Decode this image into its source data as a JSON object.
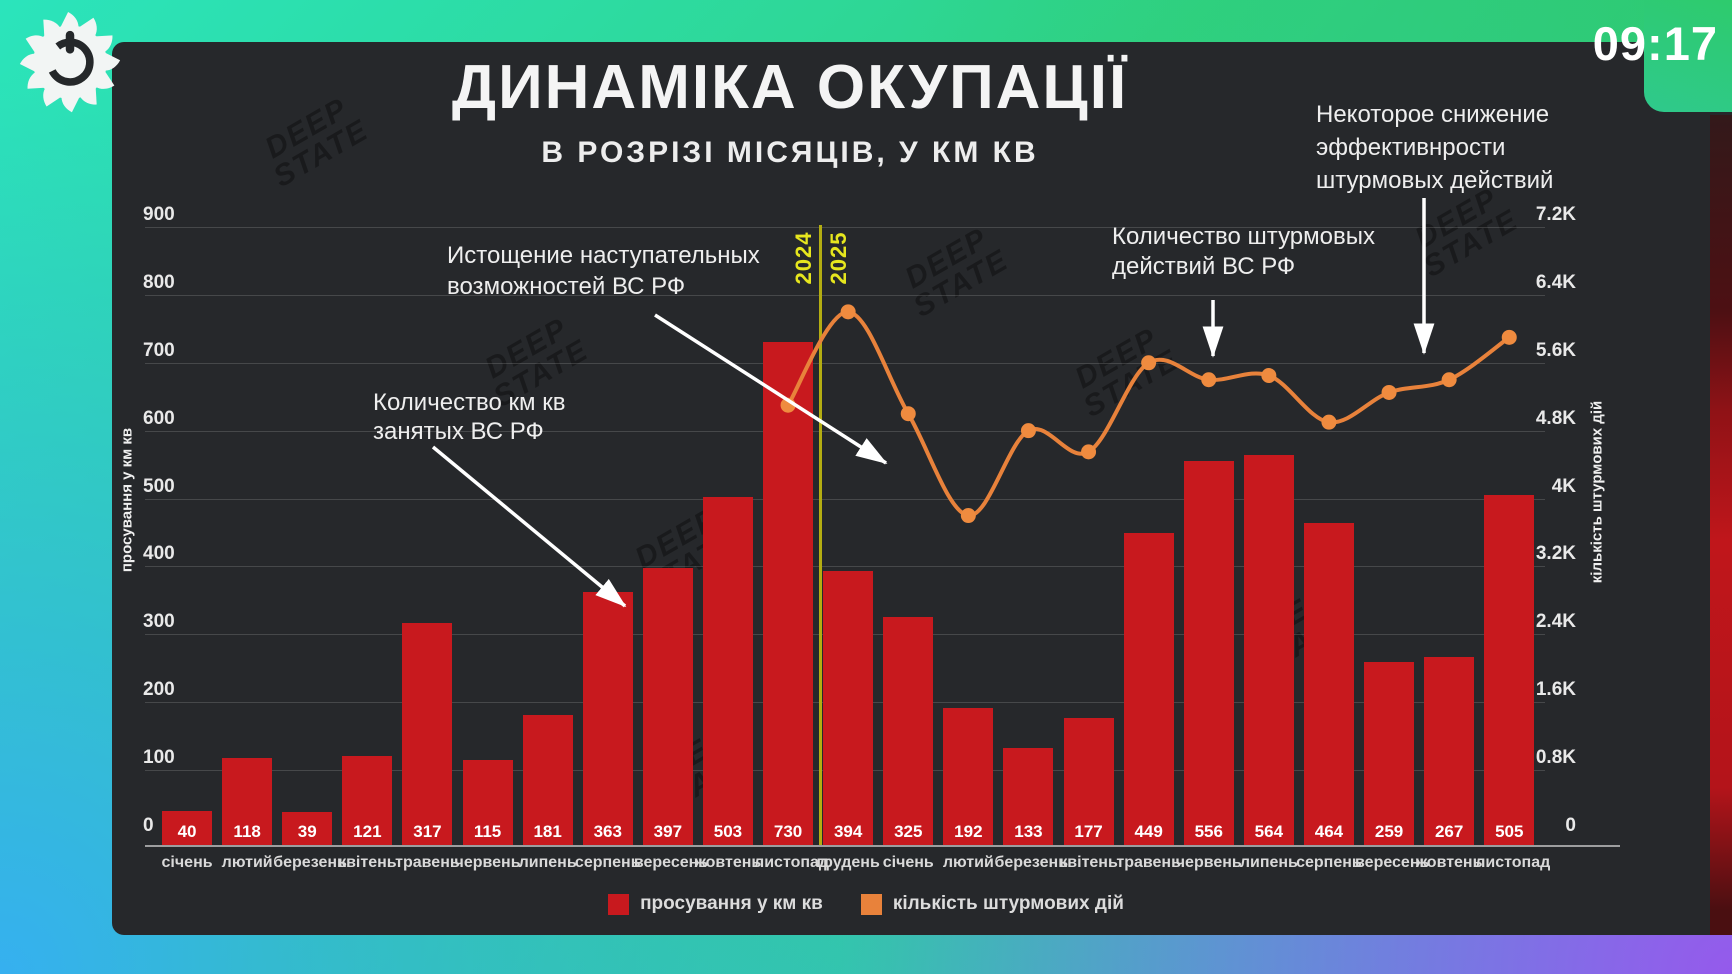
{
  "clock": "09:17",
  "header": {
    "title": "ДИНАМІКА ОКУПАЦІЇ",
    "subtitle": "В РОЗРІЗІ МІСЯЦІВ, У КМ КВ"
  },
  "chart_data": {
    "type": "bar",
    "categories": [
      "січень",
      "лютий",
      "березень",
      "квітень",
      "травень",
      "червень",
      "липень",
      "серпень",
      "вересень",
      "жовтень",
      "листопад",
      "грудень",
      "січень",
      "лютий",
      "березень",
      "квітень",
      "травень",
      "червень",
      "липень",
      "серпень",
      "вересень",
      "жовтень",
      "листопад"
    ],
    "series": [
      {
        "name": "просування у км кв",
        "type": "bar",
        "color": "#c8191e",
        "values": [
          40,
          118,
          39,
          121,
          317,
          115,
          181,
          363,
          397,
          503,
          730,
          394,
          325,
          192,
          133,
          177,
          449,
          556,
          564,
          464,
          259,
          267,
          505
        ]
      },
      {
        "name": "кількість штурмових дій",
        "type": "line",
        "color": "#e8823b",
        "values_k": [
          null,
          null,
          null,
          null,
          null,
          null,
          null,
          null,
          null,
          null,
          5.1,
          6.2,
          5.0,
          3.8,
          4.8,
          4.55,
          5.6,
          5.4,
          5.45,
          4.9,
          5.25,
          5.4,
          5.9
        ]
      }
    ],
    "left_axis": {
      "title": "просування у км кв",
      "max": 900,
      "ticks": [
        "900",
        "800",
        "700",
        "600",
        "500",
        "400",
        "300",
        "200",
        "100",
        "0"
      ]
    },
    "right_axis": {
      "title": "кількість штурмових дій",
      "max_k": 7.2,
      "ticks": [
        "7.2K",
        "6.4K",
        "5.6K",
        "4.8K",
        "4K",
        "3.2K",
        "2.4K",
        "1.6K",
        "0.8K",
        "0"
      ]
    },
    "year_divider": {
      "left_label": "2024",
      "right_label": "2025",
      "after_index": 10
    },
    "legend": [
      {
        "label": "просування у км кв",
        "color": "#c8191e"
      },
      {
        "label": "кількість штурмових дій",
        "color": "#e8823b"
      }
    ]
  },
  "annotations": [
    {
      "id": "depletion",
      "text": "Истощение наступательных\nвозможностей ВС РФ"
    },
    {
      "id": "km-occupied",
      "text": "Количество км кв\nзанятых ВС РФ"
    },
    {
      "id": "assault-count",
      "text": "Количество штурмовых\nдействий ВС РФ"
    },
    {
      "id": "effectiveness-decline",
      "text": "Некоторое снижение\nэффективнрости\nштурмовых действий"
    }
  ],
  "watermark": "DEEP\nSTATE"
}
